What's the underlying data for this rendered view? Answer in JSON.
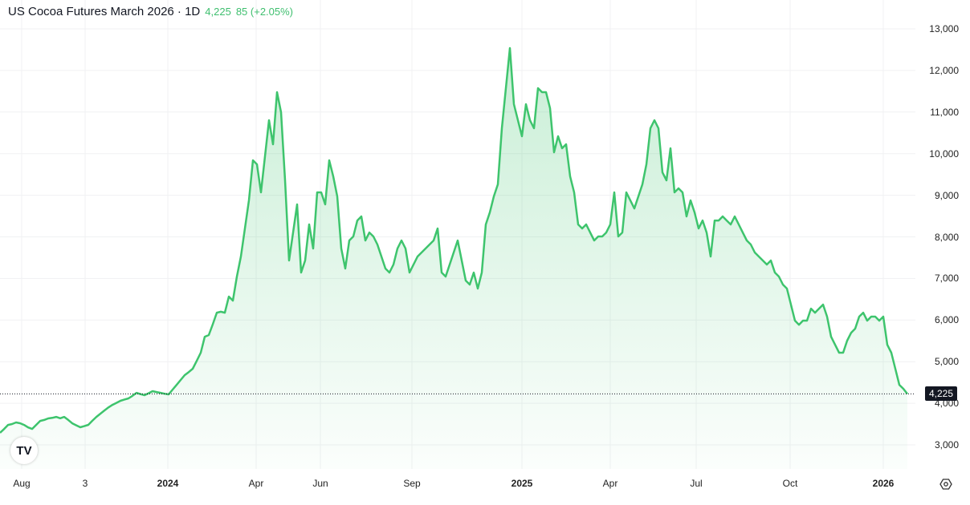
{
  "header": {
    "title": "US Cocoa Futures March 2026 · 1D",
    "price": "4,225",
    "change": "85 (+2.05%)"
  },
  "colors": {
    "line": "#3ec46d",
    "fill": "#3ec46d",
    "price_box": "#131722"
  },
  "chart_data": {
    "type": "area",
    "title": "US Cocoa Futures March 2026 · 1D",
    "ylim": [
      2000,
      13000
    ],
    "y_ticks": [
      "3,000",
      "4,000",
      "5,000",
      "6,000",
      "7,000",
      "8,000",
      "9,000",
      "10,000",
      "11,000",
      "12,000",
      "13,000"
    ],
    "y_tick_values": [
      3000,
      4000,
      5000,
      6000,
      7000,
      8000,
      9000,
      10000,
      11000,
      12000,
      13000
    ],
    "x_ticks": [
      {
        "label": "Aug",
        "index": 5.4,
        "bold": false
      },
      {
        "label": "3",
        "index": 21.2,
        "bold": false
      },
      {
        "label": "2024",
        "index": 41.8,
        "bold": true
      },
      {
        "label": "Apr",
        "index": 63.8,
        "bold": false
      },
      {
        "label": "Jun",
        "index": 79.8,
        "bold": false
      },
      {
        "label": "Sep",
        "index": 102.6,
        "bold": false
      },
      {
        "label": "2025",
        "index": 130,
        "bold": true
      },
      {
        "label": "Apr",
        "index": 152,
        "bold": false
      },
      {
        "label": "Jul",
        "index": 173.4,
        "bold": false
      },
      {
        "label": "Oct",
        "index": 196.8,
        "bold": false
      },
      {
        "label": "2026",
        "index": 220,
        "bold": true
      }
    ],
    "last_price": 4225,
    "last_price_label": "4,225",
    "values": [
      3290,
      3380,
      3480,
      3500,
      3540,
      3520,
      3480,
      3420,
      3384,
      3480,
      3577,
      3600,
      3635,
      3650,
      3673,
      3640,
      3673,
      3600,
      3519,
      3470,
      3423,
      3450,
      3481,
      3580,
      3673,
      3750,
      3827,
      3900,
      3962,
      4010,
      4059,
      4090,
      4117,
      4180,
      4251,
      4220,
      4194,
      4240,
      4290,
      4270,
      4251,
      4230,
      4213,
      4330,
      4444,
      4560,
      4676,
      4750,
      4830,
      5020,
      5215,
      5600,
      5639,
      5900,
      6178,
      6200,
      6178,
      6564,
      6468,
      7046,
      7527,
      8202,
      8876,
      9840,
      9743,
      9069,
      9936,
      10803,
      10225,
      11478,
      10996,
      9358,
      7431,
      8105,
      8780,
      7142,
      7431,
      8298,
      7720,
      9069,
      9069,
      8780,
      9840,
      9454,
      8973,
      7720,
      7238,
      7913,
      8009,
      8394,
      8491,
      7913,
      8105,
      8009,
      7816,
      7527,
      7238,
      7142,
      7335,
      7720,
      7913,
      7720,
      7142,
      7335,
      7527,
      7624,
      7720,
      7816,
      7913,
      8202,
      7142,
      7046,
      7335,
      7624,
      7913,
      7431,
      6950,
      6853,
      7142,
      6757,
      7142,
      8298,
      8587,
      8973,
      9262,
      10610,
      11574,
      12538,
      11189,
      10803,
      10418,
      11189,
      10803,
      10610,
      11574,
      11478,
      11478,
      11092,
      10032,
      10418,
      10129,
      10225,
      9454,
      9069,
      8298,
      8202,
      8298,
      8105,
      7913,
      8009,
      8009,
      8105,
      8298,
      9069,
      8009,
      8105,
      9069,
      8876,
      8683,
      8973,
      9262,
      9743,
      10610,
      10803,
      10610,
      9550,
      9358,
      10129,
      9069,
      9165,
      9069,
      8491,
      8876,
      8587,
      8202,
      8394,
      8105,
      7527,
      8394,
      8394,
      8491,
      8394,
      8298,
      8491,
      8298,
      8105,
      7913,
      7816,
      7624,
      7527,
      7431,
      7335,
      7431,
      7142,
      7046,
      6853,
      6757,
      6371,
      5986,
      5889,
      5986,
      5986,
      6275,
      6178,
      6275,
      6371,
      6082,
      5600,
      5407,
      5215,
      5215,
      5504,
      5696,
      5793,
      6082,
      6178,
      5986,
      6082,
      6082,
      5986,
      6082,
      5407,
      5215,
      4830,
      4444,
      4348,
      4225
    ]
  },
  "logo_text": "TV"
}
